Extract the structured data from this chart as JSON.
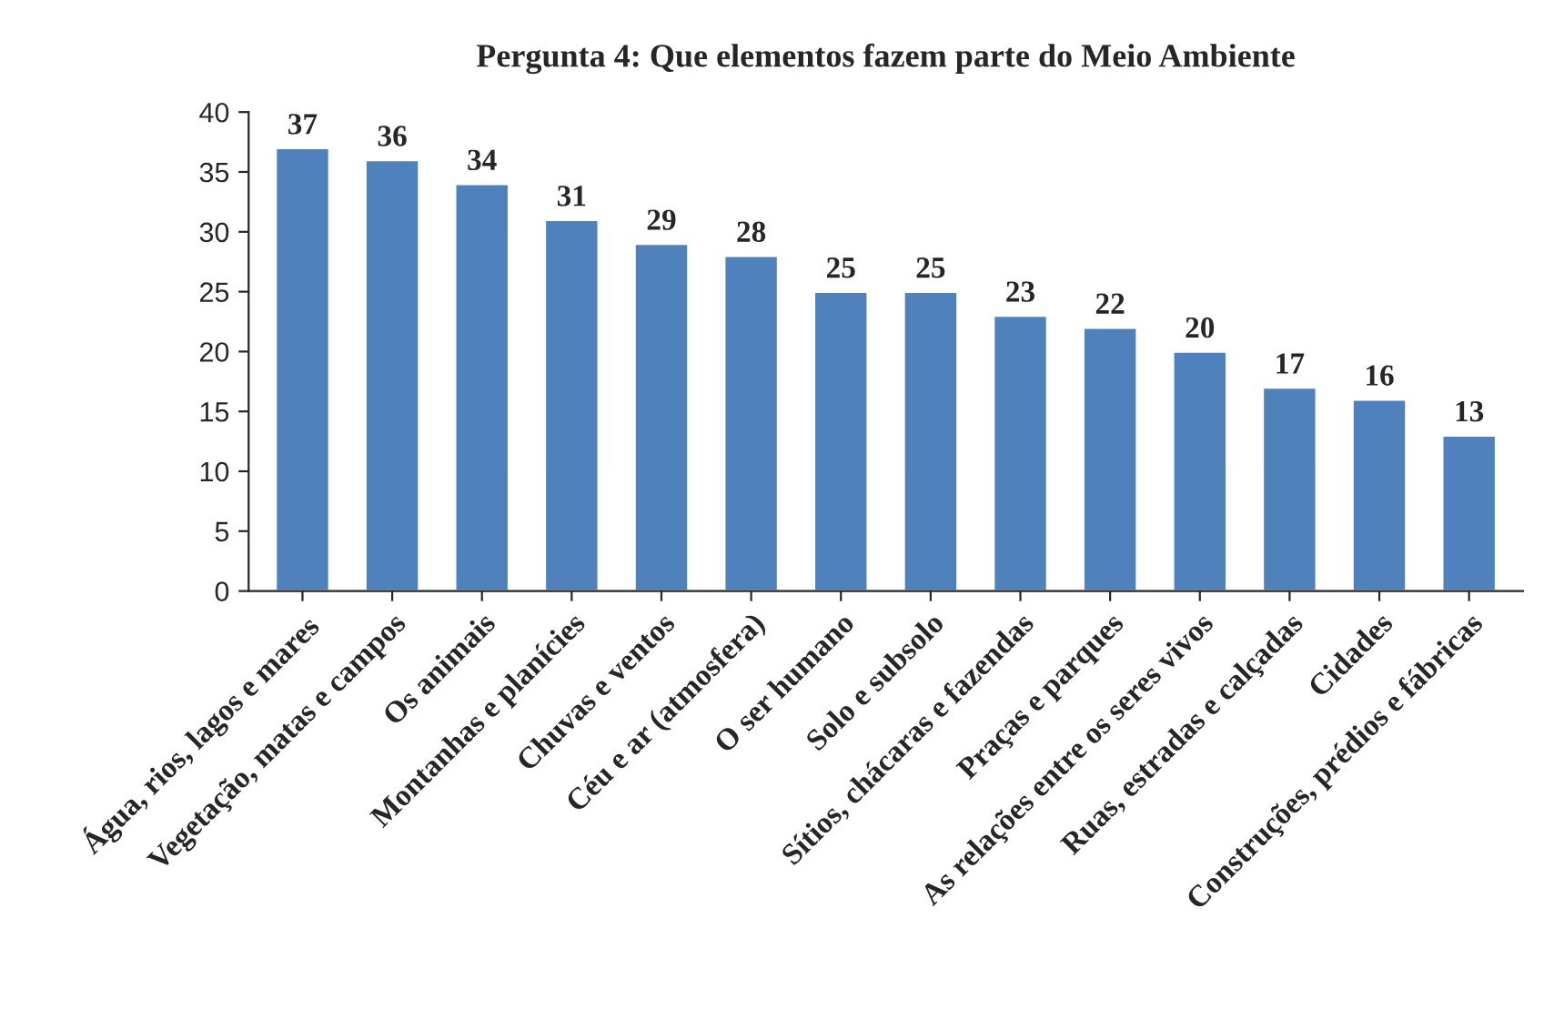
{
  "chart_data": {
    "type": "bar",
    "title": "Pergunta 4: Que elementos fazem parte do Meio Ambiente",
    "categories": [
      "Água, rios, lagos e mares",
      "Vegetação, matas e campos",
      "Os animais",
      "Montanhas e planícies",
      "Chuvas e ventos",
      "Céu e ar (atmosfera)",
      "O ser humano",
      "Solo e subsolo",
      "Sítios, chácaras e fazendas",
      "Praças e parques",
      "As relações entre os seres vivos",
      "Ruas, estradas e calçadas",
      "Cidades",
      "Construções, prédios e fábricas"
    ],
    "values": [
      37,
      36,
      34,
      31,
      29,
      28,
      25,
      25,
      23,
      22,
      20,
      17,
      16,
      13
    ],
    "color": "#4f81bd",
    "ylim": [
      0,
      40
    ],
    "yticks": [
      0,
      5,
      10,
      15,
      20,
      25,
      30,
      35,
      40
    ],
    "grid": false,
    "data_labels": true
  }
}
